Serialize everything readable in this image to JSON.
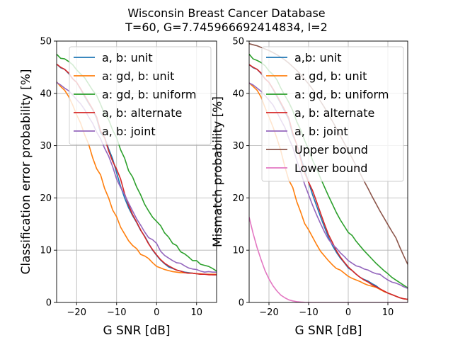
{
  "figure": {
    "title_line1": "Wisconsin Breast Cancer Database",
    "title_line2": "T=60, G=7.745966692414834, l=2"
  },
  "chart_data": [
    {
      "type": "line",
      "xlabel": "G SNR [dB]",
      "ylabel": "Classification error probability [%]",
      "xlim": [
        -25,
        15
      ],
      "ylim": [
        0,
        50
      ],
      "xticks": [
        -20,
        -10,
        0,
        10
      ],
      "yticks": [
        0,
        10,
        20,
        30,
        40,
        50
      ],
      "grid": true,
      "legend_position": "top-right",
      "x": [
        -25,
        -24,
        -23,
        -22,
        -21,
        -20,
        -19,
        -18,
        -17,
        -16,
        -15,
        -14,
        -13,
        -12,
        -11,
        -10,
        -9,
        -8,
        -7,
        -6,
        -5,
        -4,
        -3,
        -2,
        -1,
        0,
        1,
        2,
        3,
        4,
        5,
        6,
        7,
        8,
        9,
        10,
        11,
        12,
        13,
        14,
        15
      ],
      "series": [
        {
          "name": "a, b: unit",
          "color": "#1f77b4",
          "values": [
            45.6,
            44.9,
            44.6,
            43.8,
            42.8,
            42.1,
            40.8,
            39.4,
            38.1,
            36.9,
            35.2,
            32.4,
            31.6,
            29.4,
            27.5,
            24.8,
            22.2,
            20.0,
            18.1,
            16.6,
            15.3,
            13.8,
            12.7,
            11.3,
            10.0,
            9.0,
            8.1,
            7.4,
            6.8,
            6.5,
            6.2,
            6.0,
            5.8,
            5.7,
            5.6,
            5.5,
            5.4,
            5.4,
            5.4,
            5.3,
            5.3
          ]
        },
        {
          "name": "a: gd, b: unit",
          "color": "#ff7f0e",
          "values": [
            42.2,
            41.3,
            40.6,
            39.4,
            37.8,
            35.9,
            34.3,
            32.1,
            30.3,
            27.7,
            25.6,
            24.4,
            21.8,
            20.0,
            17.7,
            16.4,
            14.4,
            13.1,
            11.8,
            10.9,
            10.3,
            9.2,
            8.9,
            8.4,
            7.6,
            6.9,
            6.6,
            6.3,
            6.1,
            5.9,
            5.8,
            5.7,
            5.7,
            5.6,
            5.6,
            5.5,
            5.5,
            5.4,
            5.4,
            5.4,
            5.4
          ]
        },
        {
          "name": "a: gd, b: uniform",
          "color": "#2ca02c",
          "values": [
            47.5,
            46.7,
            46.6,
            46.1,
            45.5,
            44.5,
            43.7,
            43.0,
            41.8,
            40.6,
            39.6,
            37.9,
            36.0,
            35.0,
            33.0,
            31.5,
            29.2,
            27.6,
            25.2,
            24.0,
            22.1,
            20.6,
            18.8,
            17.5,
            16.3,
            15.5,
            14.7,
            13.3,
            12.5,
            11.3,
            10.9,
            9.7,
            9.3,
            8.7,
            8.0,
            8.0,
            7.3,
            7.1,
            6.9,
            6.5,
            6.0
          ]
        },
        {
          "name": "a, b: alternate",
          "color": "#d62728",
          "values": [
            45.6,
            45.0,
            44.6,
            43.9,
            42.8,
            42.1,
            40.9,
            39.6,
            38.3,
            37.0,
            35.5,
            32.8,
            31.5,
            29.0,
            27.0,
            25.5,
            23.6,
            20.8,
            18.6,
            16.8,
            15.4,
            13.9,
            12.6,
            11.2,
            10.1,
            9.1,
            8.2,
            7.5,
            7.0,
            6.6,
            6.2,
            6.0,
            5.7,
            5.6,
            5.6,
            5.5,
            5.4,
            5.4,
            5.3,
            5.3,
            5.3
          ]
        },
        {
          "name": "a, b: joint",
          "color": "#9467bd",
          "values": [
            42.1,
            41.6,
            41.0,
            40.5,
            39.7,
            38.8,
            38.0,
            36.9,
            35.5,
            34.3,
            32.6,
            31.3,
            29.5,
            28.0,
            26.0,
            23.6,
            22.0,
            20.6,
            19.0,
            17.5,
            16.0,
            14.8,
            13.5,
            12.4,
            12.0,
            11.3,
            9.8,
            9.0,
            8.5,
            8.0,
            7.6,
            7.5,
            7.0,
            6.6,
            6.4,
            6.3,
            6.0,
            5.8,
            5.9,
            5.8,
            5.8
          ]
        }
      ]
    },
    {
      "type": "line",
      "xlabel": "G SNR [dB]",
      "ylabel": "Mismatch probability [%]",
      "xlim": [
        -25,
        15
      ],
      "ylim": [
        0,
        50
      ],
      "xticks": [
        -20,
        -10,
        0,
        10
      ],
      "yticks": [
        0,
        10,
        20,
        30,
        40,
        50
      ],
      "grid": true,
      "legend_position": "top-right",
      "x": [
        -25,
        -24,
        -23,
        -22,
        -21,
        -20,
        -19,
        -18,
        -17,
        -16,
        -15,
        -14,
        -13,
        -12,
        -11,
        -10,
        -9,
        -8,
        -7,
        -6,
        -5,
        -4,
        -3,
        -2,
        -1,
        0,
        1,
        2,
        3,
        4,
        5,
        6,
        7,
        8,
        9,
        10,
        11,
        12,
        13,
        14,
        15
      ],
      "series": [
        {
          "name": "a,b: unit",
          "color": "#1f77b4",
          "values": [
            45.5,
            44.9,
            44.6,
            43.8,
            42.8,
            42.1,
            40.8,
            39.4,
            38.0,
            36.5,
            35.0,
            32.0,
            30.3,
            27.8,
            25.4,
            23.0,
            20.6,
            18.5,
            16.4,
            14.4,
            12.5,
            10.9,
            9.6,
            8.5,
            7.6,
            6.6,
            6.1,
            5.4,
            4.8,
            4.4,
            4.1,
            3.6,
            3.2,
            2.6,
            2.1,
            1.8,
            1.5,
            1.2,
            0.9,
            0.7,
            0.6
          ]
        },
        {
          "name": "a: gd, b: unit",
          "color": "#ff7f0e",
          "values": [
            42.0,
            41.3,
            40.6,
            39.3,
            37.3,
            35.5,
            33.6,
            31.4,
            29.0,
            26.0,
            23.4,
            22.0,
            19.3,
            17.3,
            15.1,
            13.9,
            12.5,
            11.1,
            9.8,
            8.9,
            8.0,
            7.2,
            6.5,
            6.2,
            5.6,
            5.0,
            4.6,
            4.3,
            4.0,
            3.6,
            3.3,
            3.1,
            2.9,
            2.5,
            2.1,
            1.8,
            1.5,
            1.2,
            0.9,
            0.7,
            0.6
          ]
        },
        {
          "name": "a: gd, b: uniform",
          "color": "#2ca02c",
          "values": [
            47.5,
            46.6,
            46.3,
            45.9,
            45.3,
            44.3,
            43.6,
            42.6,
            41.0,
            39.6,
            38.3,
            36.7,
            34.6,
            33.0,
            31.0,
            29.2,
            27.2,
            25.6,
            23.8,
            22.1,
            20.4,
            18.8,
            17.2,
            15.8,
            14.6,
            13.4,
            12.8,
            11.7,
            10.8,
            9.9,
            9.1,
            8.3,
            7.5,
            6.8,
            6.1,
            5.5,
            4.8,
            4.3,
            3.8,
            3.3,
            2.8
          ]
        },
        {
          "name": "a, b: alternate",
          "color": "#d62728",
          "values": [
            45.5,
            45.0,
            44.6,
            43.9,
            42.8,
            42.1,
            40.9,
            39.6,
            38.2,
            36.8,
            35.3,
            32.4,
            30.2,
            27.4,
            24.8,
            23.0,
            21.4,
            19.3,
            17.1,
            15.0,
            13.0,
            11.5,
            9.9,
            8.7,
            7.7,
            6.8,
            6.1,
            5.4,
            4.8,
            4.3,
            3.9,
            3.4,
            3.0,
            2.6,
            2.2,
            1.8,
            1.5,
            1.2,
            0.9,
            0.7,
            0.6
          ]
        },
        {
          "name": "a, b: joint",
          "color": "#9467bd",
          "values": [
            42.0,
            41.6,
            41.0,
            40.4,
            39.6,
            38.7,
            37.8,
            36.4,
            34.9,
            33.5,
            31.4,
            29.7,
            27.2,
            25.0,
            22.6,
            20.6,
            18.6,
            16.8,
            15.1,
            13.5,
            12.1,
            11.1,
            10.4,
            9.5,
            8.8,
            8.0,
            7.5,
            7.0,
            6.8,
            6.4,
            6.2,
            5.8,
            5.5,
            5.4,
            4.8,
            4.3,
            3.9,
            3.7,
            3.4,
            3.0,
            2.7
          ]
        },
        {
          "name": "Upper bound",
          "color": "#8c564b",
          "values": [
            49.5,
            49.3,
            49.1,
            48.8,
            48.5,
            48.2,
            47.8,
            47.4,
            46.9,
            46.4,
            45.8,
            45.1,
            44.4,
            43.6,
            42.7,
            41.8,
            40.8,
            39.7,
            38.5,
            37.3,
            36.0,
            34.7,
            33.3,
            31.9,
            30.5,
            29.0,
            27.6,
            26.1,
            24.7,
            23.2,
            21.8,
            20.3,
            18.9,
            17.5,
            16.2,
            14.9,
            13.6,
            12.4,
            10.6,
            8.9,
            7.3
          ]
        },
        {
          "name": "Lower bound",
          "color": "#e377c2",
          "values": [
            16.3,
            13.2,
            10.5,
            8.2,
            6.1,
            4.5,
            3.2,
            2.2,
            1.4,
            0.9,
            0.5,
            0.3,
            0.15,
            0.07,
            0.03,
            0.01,
            0,
            0,
            0,
            0,
            0,
            0,
            0,
            0,
            0,
            0,
            0,
            0,
            0,
            0,
            0,
            0,
            0,
            0,
            0,
            0,
            0,
            0,
            0,
            0,
            0
          ]
        }
      ]
    }
  ]
}
